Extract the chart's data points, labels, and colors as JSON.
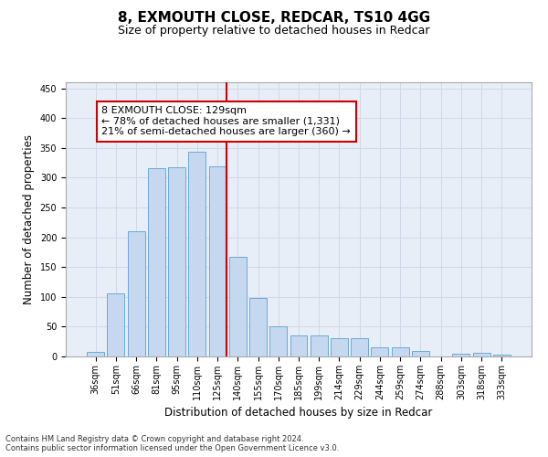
{
  "title": "8, EXMOUTH CLOSE, REDCAR, TS10 4GG",
  "subtitle": "Size of property relative to detached houses in Redcar",
  "xlabel": "Distribution of detached houses by size in Redcar",
  "ylabel": "Number of detached properties",
  "bar_categories": [
    "36sqm",
    "51sqm",
    "66sqm",
    "81sqm",
    "95sqm",
    "110sqm",
    "125sqm",
    "140sqm",
    "155sqm",
    "170sqm",
    "185sqm",
    "199sqm",
    "214sqm",
    "229sqm",
    "244sqm",
    "259sqm",
    "274sqm",
    "288sqm",
    "303sqm",
    "318sqm",
    "333sqm"
  ],
  "bar_values": [
    7,
    106,
    210,
    316,
    318,
    344,
    319,
    167,
    98,
    50,
    35,
    35,
    30,
    30,
    16,
    16,
    9,
    0,
    5,
    6,
    3
  ],
  "bar_color": "#c5d8f0",
  "bar_edge_color": "#6aaad4",
  "vline_x_index": 6,
  "vline_color": "#cc0000",
  "annotation_text": "8 EXMOUTH CLOSE: 129sqm\n← 78% of detached houses are smaller (1,331)\n21% of semi-detached houses are larger (360) →",
  "annotation_box_color": "#cc0000",
  "ylim": [
    0,
    460
  ],
  "yticks": [
    0,
    50,
    100,
    150,
    200,
    250,
    300,
    350,
    400,
    450
  ],
  "grid_color": "#d0d8e8",
  "bg_color": "#e8eef8",
  "footer_line1": "Contains HM Land Registry data © Crown copyright and database right 2024.",
  "footer_line2": "Contains public sector information licensed under the Open Government Licence v3.0.",
  "title_fontsize": 11,
  "subtitle_fontsize": 9,
  "axis_label_fontsize": 8.5,
  "tick_fontsize": 7,
  "annotation_fontsize": 8,
  "footer_fontsize": 6
}
